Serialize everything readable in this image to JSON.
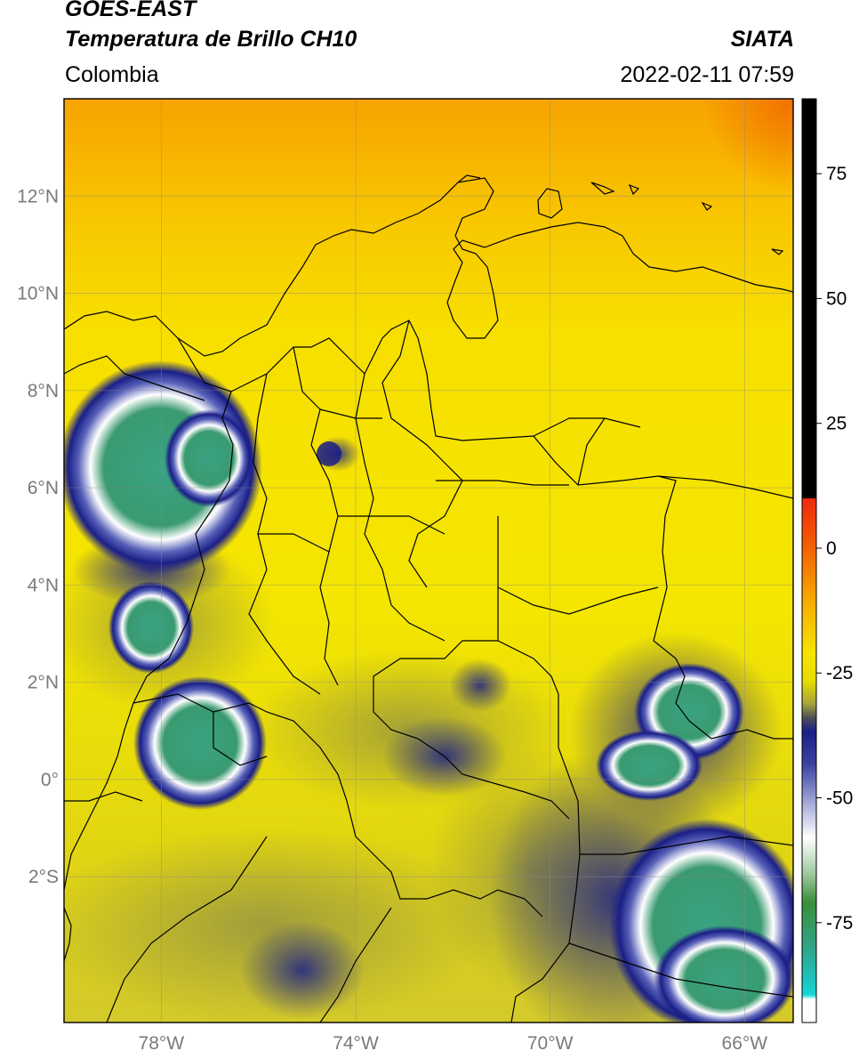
{
  "header": {
    "satellite": "GOES-EAST",
    "product": "Temperatura de Brillo CH10",
    "region": "Colombia",
    "agency": "SIATA",
    "datetime": "2022-02-11 07:59"
  },
  "map": {
    "lon_range": [
      -80,
      -65
    ],
    "lat_range": [
      -5,
      14
    ],
    "lat_ticks": [
      {
        "v": 12,
        "label": "12°N"
      },
      {
        "v": 10,
        "label": "10°N"
      },
      {
        "v": 8,
        "label": "8°N"
      },
      {
        "v": 6,
        "label": "6°N"
      },
      {
        "v": 4,
        "label": "4°N"
      },
      {
        "v": 2,
        "label": "2°N"
      },
      {
        "v": 0,
        "label": "0°"
      },
      {
        "v": -2,
        "label": "2°S"
      }
    ],
    "lon_ticks": [
      {
        "v": -78,
        "label": "78°W"
      },
      {
        "v": -74,
        "label": "74°W"
      },
      {
        "v": -70,
        "label": "70°W"
      },
      {
        "v": -66,
        "label": "66°W"
      }
    ]
  },
  "colorbar": {
    "range": [
      -95,
      90
    ],
    "ticks": [
      {
        "v": 75,
        "label": "75"
      },
      {
        "v": 50,
        "label": "50"
      },
      {
        "v": 25,
        "label": "25"
      },
      {
        "v": 0,
        "label": "0"
      },
      {
        "v": -25,
        "label": "-25"
      },
      {
        "v": -50,
        "label": "-50"
      },
      {
        "v": -75,
        "label": "-75"
      }
    ],
    "colors": {
      "black": "#000000",
      "red": "#ee2a10",
      "orange": "#f7a600",
      "yellow": "#f5e500",
      "olive": "#9b9b3a",
      "navy": "#1b1f87",
      "white": "#ffffff",
      "green": "#3a8f3a",
      "teal": "#2fa58a",
      "cyan": "#14d8d8"
    }
  }
}
